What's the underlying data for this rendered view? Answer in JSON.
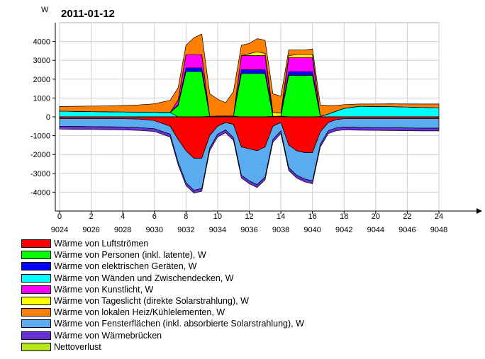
{
  "chart_data": {
    "type": "area",
    "title": "2011-01-12",
    "ylabel": "W",
    "xlabel": "",
    "ylim": [
      -5000,
      5000
    ],
    "y_ticks": [
      4000,
      3000,
      2000,
      1000,
      0,
      -1000,
      -2000,
      -3000,
      -4000
    ],
    "xlim": [
      0,
      24
    ],
    "x_ticks_hours": [
      "0",
      "2",
      "4",
      "6",
      "8",
      "10",
      "12",
      "14",
      "16",
      "18",
      "20",
      "22",
      "24"
    ],
    "x_ticks_index": [
      "9024",
      "9026",
      "9028",
      "9030",
      "9032",
      "9034",
      "9036",
      "9038",
      "9040",
      "9042",
      "9044",
      "9046",
      "9048"
    ],
    "grid": true,
    "legend_position": "bottom-left",
    "x": [
      0,
      1,
      2,
      3,
      4,
      5,
      6,
      7,
      7.5,
      8,
      8.5,
      9,
      9.5,
      10,
      10.5,
      11,
      11.5,
      12,
      12.5,
      13,
      13.5,
      14,
      14.5,
      15,
      15.5,
      16,
      16.5,
      17,
      17.5,
      18,
      19,
      20,
      21,
      22,
      23,
      24
    ],
    "positive_series": [
      {
        "name": "Wärme von Wänden und Zwischendecken, W",
        "color": "#00ffff",
        "values": [
          300,
          290,
          280,
          270,
          260,
          250,
          240,
          230,
          0,
          0,
          0,
          0,
          30,
          40,
          50,
          40,
          0,
          0,
          0,
          0,
          30,
          40,
          0,
          0,
          0,
          0,
          20,
          150,
          300,
          450,
          560,
          550,
          540,
          520,
          500,
          480
        ]
      },
      {
        "name": "Wärme von Personen (inkl. latente), W",
        "color": "#00ff00",
        "values": [
          0,
          0,
          0,
          0,
          0,
          0,
          0,
          0,
          600,
          2400,
          2400,
          2400,
          0,
          0,
          0,
          0,
          2300,
          2300,
          2300,
          2300,
          0,
          0,
          2200,
          2200,
          2200,
          2200,
          0,
          0,
          0,
          0,
          0,
          0,
          0,
          0,
          0,
          0
        ]
      },
      {
        "name": "Wärme von elektrischen Geräten, W",
        "color": "#0000ff",
        "values": [
          0,
          0,
          0,
          0,
          0,
          0,
          0,
          0,
          50,
          200,
          200,
          200,
          0,
          0,
          0,
          0,
          200,
          200,
          200,
          200,
          0,
          0,
          200,
          200,
          200,
          200,
          0,
          0,
          0,
          0,
          0,
          0,
          0,
          0,
          0,
          0
        ]
      },
      {
        "name": "Wärme von Kunstlicht, W",
        "color": "#ff00ff",
        "values": [
          0,
          0,
          0,
          0,
          0,
          0,
          0,
          0,
          250,
          700,
          700,
          700,
          0,
          0,
          0,
          0,
          750,
          750,
          750,
          750,
          0,
          0,
          750,
          750,
          750,
          750,
          0,
          0,
          0,
          0,
          0,
          0,
          0,
          0,
          0,
          0
        ]
      },
      {
        "name": "Wärme von Tageslicht (direkte Solarstrahlung), W",
        "color": "#ffff00",
        "values": [
          0,
          0,
          0,
          0,
          0,
          0,
          0,
          0,
          0,
          0,
          0,
          0,
          0,
          0,
          0,
          0,
          0,
          100,
          200,
          120,
          200,
          150,
          100,
          150,
          150,
          150,
          0,
          0,
          0,
          0,
          0,
          0,
          0,
          0,
          0,
          0
        ]
      },
      {
        "name": "Wärme von lokalen Heiz/Kühlelementen, W",
        "color": "#ff8000",
        "values": [
          250,
          270,
          290,
          310,
          340,
          380,
          450,
          650,
          650,
          500,
          900,
          1100,
          1200,
          900,
          700,
          1300,
          550,
          550,
          700,
          700,
          1000,
          900,
          300,
          250,
          250,
          300,
          600,
          450,
          300,
          200,
          120,
          130,
          150,
          160,
          180,
          200
        ]
      }
    ],
    "negative_series": [
      {
        "name": "Wärme von Luftströmen",
        "color": "#ff0000",
        "values": [
          -100,
          -100,
          -100,
          -100,
          -100,
          -120,
          -200,
          -500,
          -1200,
          -1800,
          -2200,
          -2200,
          -1000,
          -500,
          -300,
          -400,
          -1600,
          -1700,
          -1800,
          -1600,
          -500,
          -300,
          -1500,
          -1800,
          -1900,
          -1900,
          -800,
          -300,
          -150,
          -100,
          -100,
          -100,
          -100,
          -100,
          -100,
          -100
        ]
      },
      {
        "name": "Wärme von Wänden und Zwischendecken, W",
        "color": "#00ffff",
        "values": [
          0,
          0,
          0,
          0,
          0,
          0,
          0,
          0,
          0,
          0,
          0,
          0,
          0,
          0,
          0,
          0,
          0,
          0,
          0,
          0,
          0,
          0,
          0,
          0,
          0,
          0,
          0,
          0,
          0,
          0,
          0,
          0,
          0,
          0,
          0,
          0
        ]
      },
      {
        "name": "Wärme von Fensterflächen (inkl. absorbierte Solarstrahlung), W",
        "color": "#5aabf0",
        "values": [
          -400,
          -410,
          -420,
          -430,
          -440,
          -450,
          -430,
          -420,
          -1200,
          -1700,
          -1700,
          -1600,
          -650,
          -420,
          -400,
          -700,
          -1500,
          -1700,
          -1800,
          -1600,
          -700,
          -440,
          -1200,
          -1300,
          -1400,
          -1500,
          -650,
          -440,
          -440,
          -440,
          -460,
          -470,
          -480,
          -490,
          -500,
          -500
        ]
      },
      {
        "name": "Wärme von Wärmebrücken",
        "color": "#6a30d8",
        "values": [
          -150,
          -150,
          -150,
          -150,
          -150,
          -150,
          -150,
          -150,
          -150,
          -150,
          -150,
          -150,
          -150,
          -150,
          -150,
          -150,
          -150,
          -150,
          -150,
          -150,
          -150,
          -150,
          -150,
          -150,
          -150,
          -150,
          -150,
          -150,
          -150,
          -150,
          -150,
          -150,
          -150,
          -150,
          -150,
          -150
        ]
      }
    ],
    "legend": [
      {
        "label": "Wärme von Luftströmen",
        "color": "#ff0000"
      },
      {
        "label": "Wärme von Personen (inkl. latente), W",
        "color": "#00ff00"
      },
      {
        "label": "Wärme von elektrischen Geräten, W",
        "color": "#0000ff"
      },
      {
        "label": "Wärme von Wänden und Zwischendecken, W",
        "color": "#00ffff"
      },
      {
        "label": "Wärme von Kunstlicht, W",
        "color": "#ff00ff"
      },
      {
        "label": "Wärme von Tageslicht (direkte Solarstrahlung), W",
        "color": "#ffff00"
      },
      {
        "label": "Wärme von lokalen Heiz/Kühlelementen, W",
        "color": "#ff8000"
      },
      {
        "label": "Wärme von Fensterflächen (inkl. absorbierte Solarstrahlung), W",
        "color": "#5aabf0"
      },
      {
        "label": "Wärme von Wärmebrücken",
        "color": "#6a30d8"
      },
      {
        "label": "Nettoverlust",
        "color": "#b5e61d"
      }
    ]
  }
}
